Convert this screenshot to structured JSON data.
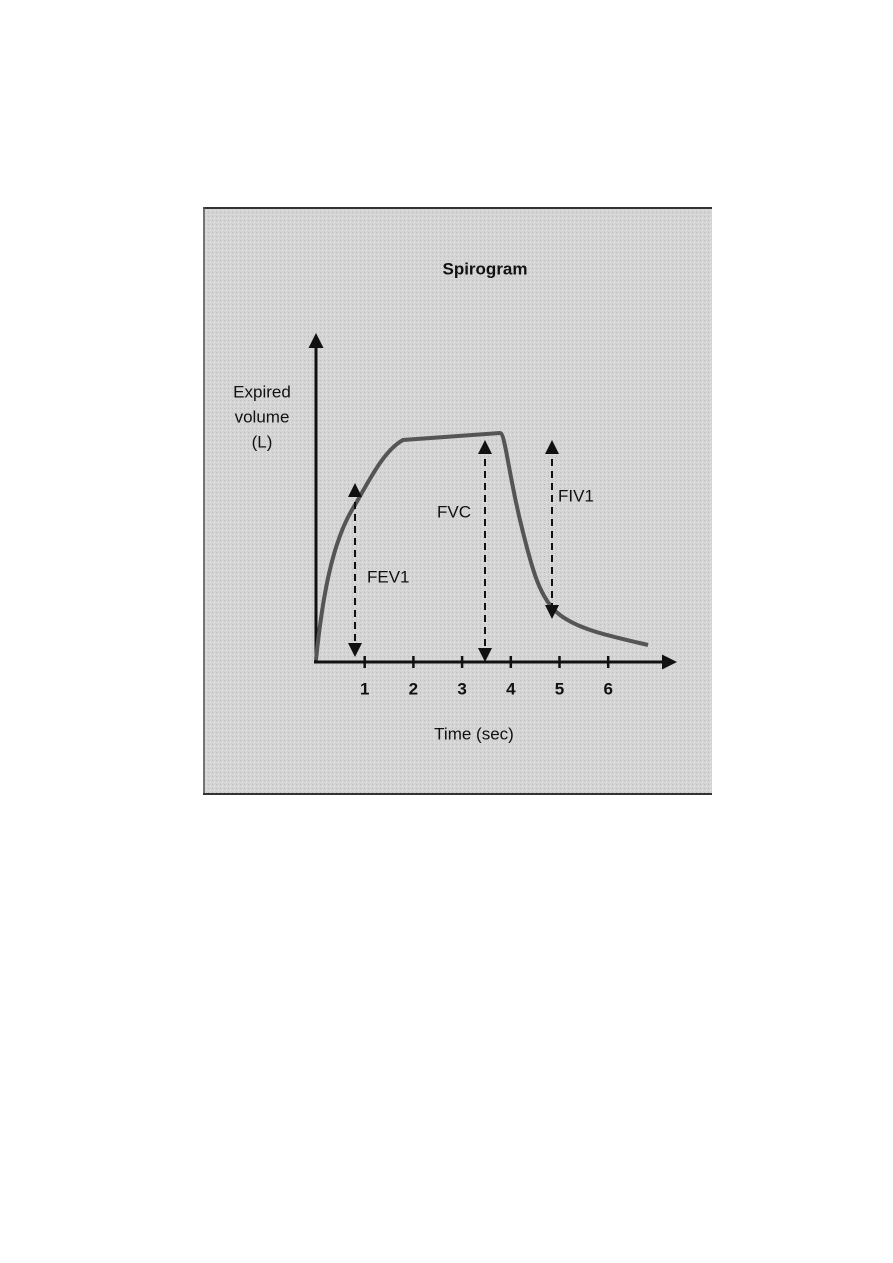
{
  "title": "Spirogram",
  "y_axis_label": [
    "Expired",
    "volume",
    "(L)"
  ],
  "x_axis_label": "Time (sec)",
  "x_ticks": [
    1,
    2,
    3,
    4,
    5,
    6
  ],
  "annotations": {
    "fev1": "FEV1",
    "fvc": "FVC",
    "fiv1": "FIV1"
  }
}
